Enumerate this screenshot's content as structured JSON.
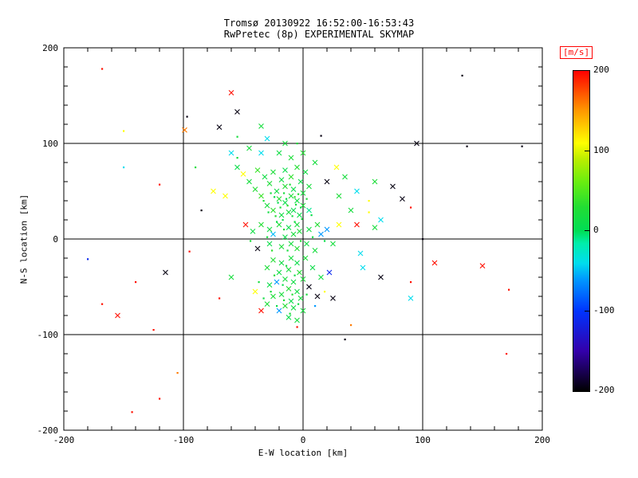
{
  "chart_data": {
    "type": "scatter",
    "title": "Tromsø 20130922 16:52:00-16:53:43",
    "subtitle": "RwPretec (8p) EXPERIMENTAL SKYMAP",
    "axes": {
      "x": {
        "label": "E-W location [km]",
        "min": -200,
        "max": 200,
        "ticks": [
          -200,
          -100,
          0,
          100,
          200
        ],
        "minor_step": 20,
        "grid": [
          -100,
          0,
          100
        ]
      },
      "y": {
        "label": "N-S location [km]",
        "min": -200,
        "max": 200,
        "ticks": [
          -200,
          -100,
          0,
          100,
          200
        ],
        "minor_step": 20,
        "grid": [
          -100,
          0,
          100
        ]
      }
    },
    "grid_on": true,
    "frame_color": "#000000",
    "background_color": "#ffffff",
    "colorbar": {
      "title": "[m/s]",
      "title_color": "#ff0000",
      "ticks": [
        200,
        100,
        0,
        -100,
        -200
      ],
      "min": -200,
      "max": 200
    },
    "colormap": {
      "min": -200,
      "max": 200,
      "stops": [
        [
          -200,
          "#000000"
        ],
        [
          -150,
          "#3300aa"
        ],
        [
          -100,
          "#0033ff"
        ],
        [
          -60,
          "#0099ff"
        ],
        [
          -40,
          "#00ddee"
        ],
        [
          -15,
          "#00eeaa"
        ],
        [
          0,
          "#00dd55"
        ],
        [
          30,
          "#22dd33"
        ],
        [
          60,
          "#66ee11"
        ],
        [
          90,
          "#bbee00"
        ],
        [
          110,
          "#ffff00"
        ],
        [
          150,
          "#ff9900"
        ],
        [
          200,
          "#ff0000"
        ]
      ]
    },
    "point_format": [
      "x_km",
      "y_km",
      "velocity_ms",
      "marker_1cross_0dot"
    ],
    "points": [
      [
        -5,
        40,
        15,
        1
      ],
      [
        -10,
        45,
        25,
        1
      ],
      [
        -15,
        38,
        10,
        1
      ],
      [
        -20,
        42,
        30,
        1
      ],
      [
        -8,
        30,
        5,
        1
      ],
      [
        -12,
        28,
        20,
        1
      ],
      [
        -18,
        25,
        15,
        1
      ],
      [
        -25,
        30,
        35,
        1
      ],
      [
        -3,
        25,
        10,
        1
      ],
      [
        0,
        35,
        25,
        1
      ],
      [
        5,
        30,
        -10,
        1
      ],
      [
        -30,
        35,
        20,
        1
      ],
      [
        -22,
        50,
        15,
        1
      ],
      [
        -15,
        55,
        30,
        1
      ],
      [
        -8,
        52,
        10,
        1
      ],
      [
        0,
        48,
        20,
        1
      ],
      [
        -35,
        45,
        40,
        1
      ],
      [
        -28,
        58,
        25,
        1
      ],
      [
        -18,
        62,
        15,
        1
      ],
      [
        -10,
        65,
        35,
        1
      ],
      [
        -2,
        60,
        10,
        1
      ],
      [
        5,
        55,
        20,
        1
      ],
      [
        -40,
        52,
        30,
        1
      ],
      [
        -32,
        65,
        15,
        1
      ],
      [
        -25,
        70,
        25,
        1
      ],
      [
        -15,
        72,
        10,
        1
      ],
      [
        -5,
        75,
        30,
        1
      ],
      [
        2,
        70,
        15,
        1
      ],
      [
        -45,
        60,
        20,
        1
      ],
      [
        -38,
        72,
        40,
        1
      ],
      [
        -50,
        68,
        110,
        1
      ],
      [
        -10,
        85,
        25,
        1
      ],
      [
        -20,
        90,
        15,
        1
      ],
      [
        0,
        90,
        30,
        1
      ],
      [
        10,
        80,
        20,
        1
      ],
      [
        -55,
        75,
        10,
        1
      ],
      [
        -6,
        36,
        20,
        0
      ],
      [
        -14,
        42,
        10,
        0
      ],
      [
        -19,
        33,
        25,
        0
      ],
      [
        -9,
        24,
        15,
        0
      ],
      [
        -4,
        47,
        30,
        0
      ],
      [
        -16,
        48,
        20,
        0
      ],
      [
        -24,
        44,
        10,
        0
      ],
      [
        -11,
        57,
        25,
        0
      ],
      [
        -7,
        44,
        35,
        0
      ],
      [
        -13,
        35,
        35,
        0
      ],
      [
        -21,
        38,
        5,
        0
      ],
      [
        -2,
        33,
        15,
        0
      ],
      [
        3,
        42,
        25,
        0
      ],
      [
        -27,
        48,
        20,
        0
      ],
      [
        -17,
        20,
        10,
        0
      ],
      [
        -23,
        24,
        30,
        0
      ],
      [
        -29,
        28,
        15,
        0
      ],
      [
        -1,
        21,
        20,
        0
      ],
      [
        7,
        25,
        10,
        0
      ],
      [
        -33,
        40,
        25,
        0
      ],
      [
        -5,
        15,
        20,
        1
      ],
      [
        -12,
        12,
        10,
        1
      ],
      [
        -20,
        15,
        25,
        1
      ],
      [
        -28,
        10,
        15,
        1
      ],
      [
        -35,
        15,
        30,
        1
      ],
      [
        -8,
        5,
        20,
        1
      ],
      [
        -15,
        2,
        10,
        1
      ],
      [
        -25,
        5,
        -50,
        1
      ],
      [
        -3,
        8,
        25,
        1
      ],
      [
        5,
        10,
        15,
        1
      ],
      [
        12,
        15,
        30,
        1
      ],
      [
        20,
        10,
        -60,
        1
      ],
      [
        -42,
        8,
        15,
        1
      ],
      [
        -10,
        -5,
        20,
        1
      ],
      [
        -18,
        -8,
        25,
        1
      ],
      [
        -28,
        -5,
        10,
        1
      ],
      [
        -5,
        -10,
        30,
        1
      ],
      [
        3,
        -5,
        15,
        1
      ],
      [
        10,
        -12,
        20,
        1
      ],
      [
        -38,
        -10,
        -195,
        1
      ],
      [
        30,
        15,
        110,
        1
      ],
      [
        25,
        -5,
        20,
        1
      ],
      [
        -48,
        15,
        195,
        1
      ],
      [
        15,
        5,
        -60,
        1
      ],
      [
        -7,
        18,
        15,
        0
      ],
      [
        -16,
        10,
        25,
        0
      ],
      [
        -22,
        18,
        10,
        0
      ],
      [
        -30,
        2,
        20,
        0
      ],
      [
        -2,
        -2,
        30,
        0
      ],
      [
        8,
        2,
        15,
        0
      ],
      [
        -13,
        -12,
        20,
        0
      ],
      [
        -26,
        -12,
        35,
        0
      ],
      [
        18,
        -2,
        10,
        0
      ],
      [
        -44,
        -2,
        25,
        0
      ],
      [
        -10,
        -20,
        20,
        1
      ],
      [
        -18,
        -25,
        15,
        1
      ],
      [
        -25,
        -22,
        30,
        1
      ],
      [
        -5,
        -25,
        10,
        1
      ],
      [
        2,
        -20,
        25,
        1
      ],
      [
        -12,
        -32,
        20,
        1
      ],
      [
        -20,
        -35,
        15,
        1
      ],
      [
        -30,
        -30,
        25,
        1
      ],
      [
        -3,
        -35,
        30,
        1
      ],
      [
        8,
        -30,
        10,
        1
      ],
      [
        -15,
        -42,
        20,
        1
      ],
      [
        -8,
        -45,
        15,
        1
      ],
      [
        -22,
        -45,
        -60,
        1
      ],
      [
        0,
        -42,
        25,
        1
      ],
      [
        -28,
        -48,
        10,
        1
      ],
      [
        -12,
        -52,
        30,
        1
      ],
      [
        -5,
        -55,
        15,
        1
      ],
      [
        -18,
        -58,
        20,
        1
      ],
      [
        5,
        -50,
        -195,
        1
      ],
      [
        -25,
        -60,
        25,
        1
      ],
      [
        -10,
        -65,
        10,
        1
      ],
      [
        -2,
        -62,
        20,
        1
      ],
      [
        -15,
        -70,
        30,
        1
      ],
      [
        -8,
        -72,
        15,
        1
      ],
      [
        -20,
        -75,
        -60,
        1
      ],
      [
        0,
        -75,
        20,
        1
      ],
      [
        -30,
        -68,
        25,
        1
      ],
      [
        -35,
        -75,
        195,
        1
      ],
      [
        -12,
        -82,
        10,
        1
      ],
      [
        -5,
        -85,
        20,
        1
      ],
      [
        12,
        -60,
        -195,
        1
      ],
      [
        -40,
        -55,
        110,
        1
      ],
      [
        15,
        -40,
        15,
        1
      ],
      [
        22,
        -35,
        -110,
        1
      ],
      [
        -14,
        -28,
        20,
        0
      ],
      [
        -7,
        -38,
        15,
        0
      ],
      [
        -24,
        -38,
        25,
        0
      ],
      [
        -17,
        -48,
        10,
        0
      ],
      [
        -9,
        -58,
        30,
        0
      ],
      [
        -27,
        -55,
        20,
        0
      ],
      [
        -4,
        -68,
        15,
        0
      ],
      [
        -16,
        -64,
        25,
        0
      ],
      [
        -22,
        -70,
        10,
        0
      ],
      [
        3,
        -58,
        20,
        0
      ],
      [
        -33,
        -62,
        15,
        0
      ],
      [
        -11,
        -78,
        25,
        0
      ],
      [
        10,
        -70,
        -60,
        0
      ],
      [
        -37,
        -45,
        20,
        0
      ],
      [
        18,
        -55,
        110,
        0
      ],
      [
        -168,
        178,
        195,
        0
      ],
      [
        -60,
        153,
        195,
        1
      ],
      [
        -55,
        133,
        -195,
        1
      ],
      [
        -97,
        128,
        -195,
        0
      ],
      [
        -70,
        117,
        -195,
        1
      ],
      [
        -99,
        114,
        160,
        1
      ],
      [
        -150,
        113,
        110,
        0
      ],
      [
        -55,
        107,
        20,
        0
      ],
      [
        -35,
        118,
        20,
        1
      ],
      [
        -30,
        105,
        -40,
        1
      ],
      [
        -15,
        100,
        20,
        1
      ],
      [
        -5,
        100,
        25,
        0
      ],
      [
        15,
        108,
        -195,
        0
      ],
      [
        95,
        100,
        -195,
        1
      ],
      [
        137,
        97,
        -195,
        0
      ],
      [
        183,
        97,
        -195,
        0
      ],
      [
        133,
        171,
        -195,
        0
      ],
      [
        -150,
        75,
        -40,
        0
      ],
      [
        -120,
        57,
        195,
        0
      ],
      [
        -90,
        75,
        20,
        0
      ],
      [
        -85,
        30,
        -195,
        0
      ],
      [
        -95,
        -13,
        195,
        0
      ],
      [
        -115,
        -35,
        -195,
        1
      ],
      [
        -140,
        -45,
        195,
        0
      ],
      [
        -180,
        -21,
        -110,
        0
      ],
      [
        -168,
        -68,
        195,
        0
      ],
      [
        -155,
        -80,
        195,
        1
      ],
      [
        -125,
        -95,
        195,
        0
      ],
      [
        -105,
        -140,
        160,
        0
      ],
      [
        -120,
        -167,
        195,
        0
      ],
      [
        -143,
        -181,
        195,
        0
      ],
      [
        -60,
        -40,
        20,
        1
      ],
      [
        -70,
        -62,
        195,
        0
      ],
      [
        -65,
        45,
        110,
        1
      ],
      [
        -75,
        50,
        110,
        1
      ],
      [
        60,
        60,
        25,
        1
      ],
      [
        75,
        55,
        -195,
        1
      ],
      [
        55,
        40,
        110,
        0
      ],
      [
        83,
        42,
        -195,
        1
      ],
      [
        90,
        33,
        195,
        0
      ],
      [
        60,
        12,
        20,
        1
      ],
      [
        55,
        28,
        110,
        0
      ],
      [
        65,
        20,
        -40,
        1
      ],
      [
        100,
        0,
        -195,
        0
      ],
      [
        110,
        -25,
        195,
        1
      ],
      [
        150,
        -28,
        195,
        1
      ],
      [
        90,
        -45,
        195,
        0
      ],
      [
        65,
        -40,
        -195,
        1
      ],
      [
        90,
        -62,
        -40,
        1
      ],
      [
        172,
        -53,
        195,
        0
      ],
      [
        170,
        -120,
        195,
        0
      ],
      [
        25,
        -62,
        -195,
        1
      ],
      [
        35,
        -105,
        -195,
        0
      ],
      [
        -5,
        -92,
        195,
        0
      ],
      [
        40,
        -90,
        160,
        0
      ],
      [
        45,
        15,
        195,
        1
      ],
      [
        20,
        60,
        -195,
        1
      ],
      [
        30,
        45,
        25,
        1
      ],
      [
        35,
        65,
        20,
        1
      ],
      [
        45,
        50,
        -40,
        1
      ],
      [
        28,
        75,
        110,
        1
      ],
      [
        40,
        30,
        20,
        1
      ],
      [
        48,
        -15,
        -40,
        1
      ],
      [
        50,
        -30,
        -40,
        1
      ],
      [
        -45,
        95,
        20,
        1
      ],
      [
        -60,
        90,
        -40,
        1
      ],
      [
        -55,
        85,
        20,
        0
      ],
      [
        -35,
        90,
        -40,
        1
      ]
    ]
  }
}
